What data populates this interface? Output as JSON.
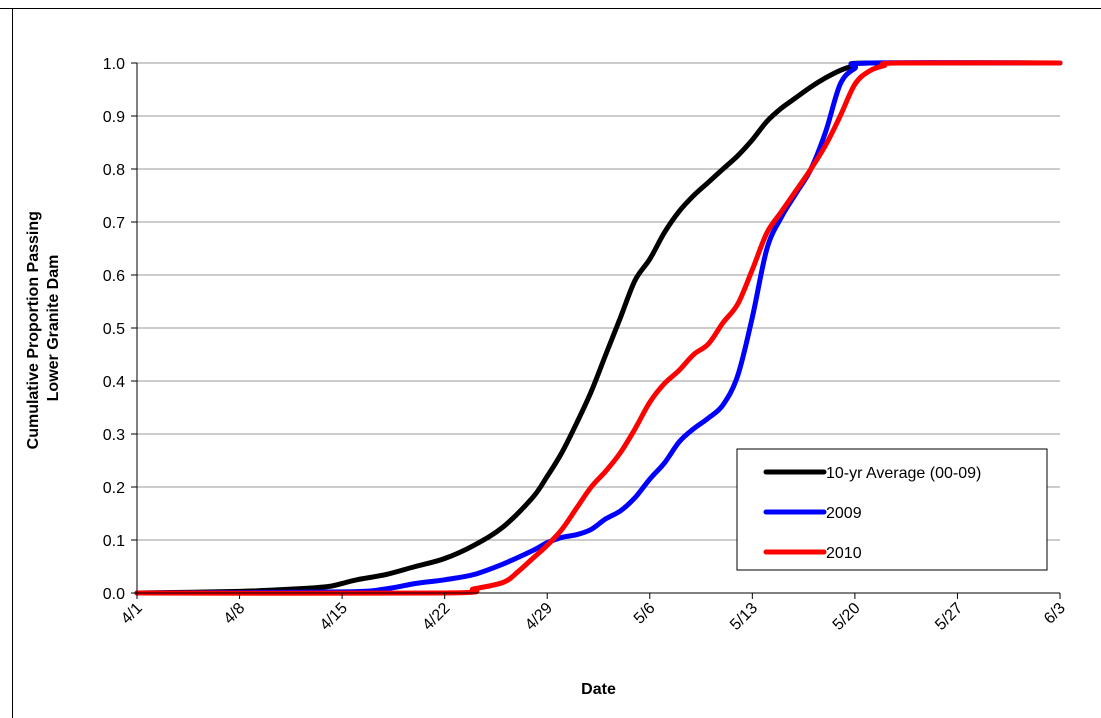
{
  "chart_data": {
    "type": "line",
    "xlabel": "Date",
    "ylabel": [
      "Cumulative Proportion Passing",
      "Lower Granite Dam"
    ],
    "ylim": [
      0,
      1
    ],
    "yticks": [
      "0.0",
      "0.1",
      "0.2",
      "0.3",
      "0.4",
      "0.5",
      "0.6",
      "0.7",
      "0.8",
      "0.9",
      "1.0"
    ],
    "xlim": [
      "4/1",
      "6/3"
    ],
    "xticks": [
      "4/1",
      "4/8",
      "4/15",
      "4/22",
      "4/29",
      "5/6",
      "5/13",
      "5/20",
      "5/27",
      "6/3"
    ],
    "grid": "horizontal",
    "legend_position": "bottom-right",
    "series": [
      {
        "name": "10-yr Average (00-09)",
        "color": "#000000",
        "points": [
          [
            "4/1",
            0.0
          ],
          [
            "4/8",
            0.003
          ],
          [
            "4/12",
            0.008
          ],
          [
            "4/14",
            0.012
          ],
          [
            "4/15",
            0.018
          ],
          [
            "4/16",
            0.025
          ],
          [
            "4/18",
            0.035
          ],
          [
            "4/20",
            0.05
          ],
          [
            "4/22",
            0.065
          ],
          [
            "4/24",
            0.09
          ],
          [
            "4/26",
            0.125
          ],
          [
            "4/28",
            0.18
          ],
          [
            "4/29",
            0.22
          ],
          [
            "4/30",
            0.265
          ],
          [
            "5/1",
            0.32
          ],
          [
            "5/2",
            0.38
          ],
          [
            "5/3",
            0.45
          ],
          [
            "5/4",
            0.52
          ],
          [
            "5/5",
            0.59
          ],
          [
            "5/6",
            0.63
          ],
          [
            "5/7",
            0.68
          ],
          [
            "5/8",
            0.72
          ],
          [
            "5/9",
            0.75
          ],
          [
            "5/10",
            0.775
          ],
          [
            "5/11",
            0.8
          ],
          [
            "5/12",
            0.825
          ],
          [
            "5/13",
            0.855
          ],
          [
            "5/14",
            0.89
          ],
          [
            "5/15",
            0.915
          ],
          [
            "5/16",
            0.935
          ],
          [
            "5/17",
            0.955
          ],
          [
            "5/18",
            0.972
          ],
          [
            "5/19",
            0.986
          ],
          [
            "5/20",
            0.995
          ],
          [
            "5/21",
            1.0
          ],
          [
            "6/3",
            1.0
          ]
        ]
      },
      {
        "name": "2009",
        "color": "#0000ff",
        "points": [
          [
            "4/1",
            0.0
          ],
          [
            "4/15",
            0.002
          ],
          [
            "4/18",
            0.008
          ],
          [
            "4/20",
            0.018
          ],
          [
            "4/22",
            0.025
          ],
          [
            "4/24",
            0.035
          ],
          [
            "4/26",
            0.055
          ],
          [
            "4/28",
            0.08
          ],
          [
            "4/29",
            0.095
          ],
          [
            "4/30",
            0.105
          ],
          [
            "5/1",
            0.11
          ],
          [
            "5/2",
            0.12
          ],
          [
            "5/3",
            0.14
          ],
          [
            "5/4",
            0.155
          ],
          [
            "5/5",
            0.18
          ],
          [
            "5/6",
            0.215
          ],
          [
            "5/7",
            0.245
          ],
          [
            "5/8",
            0.285
          ],
          [
            "5/9",
            0.31
          ],
          [
            "5/10",
            0.33
          ],
          [
            "5/11",
            0.355
          ],
          [
            "5/12",
            0.41
          ],
          [
            "5/13",
            0.52
          ],
          [
            "5/14",
            0.65
          ],
          [
            "5/15",
            0.71
          ],
          [
            "5/16",
            0.755
          ],
          [
            "5/17",
            0.8
          ],
          [
            "5/18",
            0.87
          ],
          [
            "5/19",
            0.96
          ],
          [
            "5/20",
            0.99
          ],
          [
            "5/21",
            1.0
          ],
          [
            "6/3",
            1.0
          ]
        ]
      },
      {
        "name": "2010",
        "color": "#ff0000",
        "points": [
          [
            "4/1",
            0.0
          ],
          [
            "4/22",
            0.0
          ],
          [
            "4/24",
            0.008
          ],
          [
            "4/26",
            0.02
          ],
          [
            "4/27",
            0.04
          ],
          [
            "4/28",
            0.065
          ],
          [
            "4/29",
            0.09
          ],
          [
            "4/30",
            0.12
          ],
          [
            "5/1",
            0.16
          ],
          [
            "5/2",
            0.2
          ],
          [
            "5/3",
            0.23
          ],
          [
            "5/4",
            0.265
          ],
          [
            "5/5",
            0.31
          ],
          [
            "5/6",
            0.36
          ],
          [
            "5/7",
            0.395
          ],
          [
            "5/8",
            0.42
          ],
          [
            "5/9",
            0.45
          ],
          [
            "5/10",
            0.47
          ],
          [
            "5/11",
            0.51
          ],
          [
            "5/12",
            0.545
          ],
          [
            "5/13",
            0.61
          ],
          [
            "5/14",
            0.68
          ],
          [
            "5/15",
            0.72
          ],
          [
            "5/16",
            0.76
          ],
          [
            "5/17",
            0.8
          ],
          [
            "5/18",
            0.845
          ],
          [
            "5/19",
            0.9
          ],
          [
            "5/20",
            0.96
          ],
          [
            "5/21",
            0.985
          ],
          [
            "5/22",
            0.995
          ],
          [
            "5/23",
            1.0
          ],
          [
            "6/3",
            1.0
          ]
        ]
      }
    ]
  }
}
